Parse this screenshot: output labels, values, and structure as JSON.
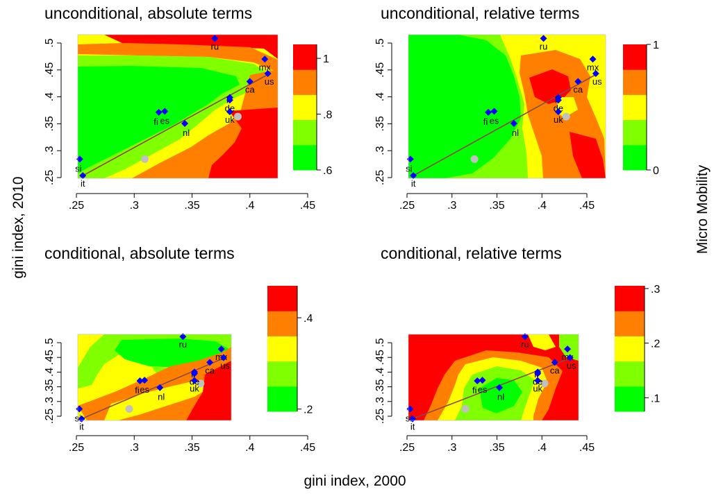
{
  "figure": {
    "xlabel": "gini index, 2000",
    "ylabel": "gini index, 2010",
    "colorbar_label": "Micro Mobility"
  },
  "colors": {
    "red": "#ff0000",
    "orange": "#ff7f00",
    "yellow": "#ffff00",
    "light_green": "#7fff00",
    "green": "#00ff00",
    "marker_country": "#0000ff",
    "marker_grey": "#c0c0c0",
    "fit_line": "#8b4a4a"
  },
  "chart_data": [
    {
      "type": "heatmap",
      "title": "unconditional, absolute terms",
      "xlim": [
        0.25,
        0.45
      ],
      "ylim": [
        0.25,
        0.52
      ],
      "x_ticks": [
        ".25",
        ".3",
        ".35",
        ".4",
        ".45"
      ],
      "y_ticks": [
        ".25",
        ".3",
        ".35",
        ".4",
        ".45",
        ".5"
      ],
      "colorbar": {
        "range": [
          0.6,
          1.05
        ],
        "ticks": [
          ".6",
          ".8",
          "1"
        ],
        "bands": [
          "green",
          "light_green",
          "yellow",
          "orange",
          "red"
        ]
      },
      "fit_line": [
        [
          0.255,
          0.255
        ],
        [
          0.44,
          0.445
        ]
      ],
      "countries": [
        {
          "code": "ru",
          "x": 0.387,
          "y": 0.513
        },
        {
          "code": "mx",
          "x": 0.437,
          "y": 0.474
        },
        {
          "code": "us",
          "x": 0.44,
          "y": 0.447
        },
        {
          "code": "ca",
          "x": 0.422,
          "y": 0.432
        },
        {
          "code": "il",
          "x": 0.402,
          "y": 0.402
        },
        {
          "code": "de",
          "x": 0.402,
          "y": 0.397
        },
        {
          "code": "uk",
          "x": 0.402,
          "y": 0.375
        },
        {
          "code": "fi",
          "x": 0.331,
          "y": 0.374
        },
        {
          "code": "es",
          "x": 0.337,
          "y": 0.376
        },
        {
          "code": "nl",
          "x": 0.357,
          "y": 0.353
        },
        {
          "code": "si",
          "x": 0.252,
          "y": 0.286
        },
        {
          "code": "it",
          "x": 0.255,
          "y": 0.255
        }
      ],
      "grey_points": [
        [
          0.317,
          0.286
        ],
        [
          0.41,
          0.366
        ]
      ]
    },
    {
      "type": "heatmap",
      "title": "unconditional, relative terms",
      "xlim": [
        0.25,
        0.45
      ],
      "ylim": [
        0.25,
        0.52
      ],
      "x_ticks": [
        ".25",
        ".3",
        ".35",
        ".4",
        ".45"
      ],
      "y_ticks": [
        ".25",
        ".3",
        ".35",
        ".4",
        ".45",
        ".5"
      ],
      "colorbar": {
        "range": [
          0,
          1
        ],
        "ticks": [
          "0",
          "1"
        ],
        "bands": [
          "green",
          "light_green",
          "yellow",
          "orange",
          "red"
        ]
      },
      "fit_line": [
        [
          0.255,
          0.255
        ],
        [
          0.44,
          0.445
        ]
      ],
      "countries": [
        {
          "code": "ru",
          "x": 0.387,
          "y": 0.513
        },
        {
          "code": "mx",
          "x": 0.437,
          "y": 0.474
        },
        {
          "code": "us",
          "x": 0.44,
          "y": 0.447
        },
        {
          "code": "ca",
          "x": 0.422,
          "y": 0.432
        },
        {
          "code": "il",
          "x": 0.402,
          "y": 0.402
        },
        {
          "code": "de",
          "x": 0.402,
          "y": 0.397
        },
        {
          "code": "uk",
          "x": 0.402,
          "y": 0.375
        },
        {
          "code": "fi",
          "x": 0.331,
          "y": 0.374
        },
        {
          "code": "es",
          "x": 0.337,
          "y": 0.376
        },
        {
          "code": "nl",
          "x": 0.357,
          "y": 0.353
        },
        {
          "code": "si",
          "x": 0.252,
          "y": 0.286
        },
        {
          "code": "it",
          "x": 0.255,
          "y": 0.255
        }
      ],
      "grey_points": [
        [
          0.317,
          0.286
        ],
        [
          0.41,
          0.366
        ]
      ]
    },
    {
      "type": "heatmap",
      "title": "conditional, absolute terms",
      "xlim": [
        0.25,
        0.45
      ],
      "ylim": [
        0.25,
        0.52
      ],
      "x_ticks": [
        ".25",
        ".3",
        ".35",
        ".4",
        ".45"
      ],
      "y_ticks": [
        ".25",
        ".3",
        ".35",
        ".4",
        ".45",
        ".5"
      ],
      "colorbar": {
        "range": [
          0.195,
          0.47
        ],
        "ticks": [
          ".2",
          ".4"
        ],
        "bands": [
          "green",
          "light_green",
          "yellow",
          "orange",
          "red"
        ]
      },
      "fit_line": [
        [
          0.255,
          0.255
        ],
        [
          0.44,
          0.445
        ]
      ],
      "countries": [
        {
          "code": "ru",
          "x": 0.387,
          "y": 0.513
        },
        {
          "code": "mx",
          "x": 0.437,
          "y": 0.474
        },
        {
          "code": "us",
          "x": 0.44,
          "y": 0.447
        },
        {
          "code": "ca",
          "x": 0.422,
          "y": 0.432
        },
        {
          "code": "il",
          "x": 0.402,
          "y": 0.402
        },
        {
          "code": "de",
          "x": 0.402,
          "y": 0.397
        },
        {
          "code": "uk",
          "x": 0.402,
          "y": 0.375
        },
        {
          "code": "fi",
          "x": 0.331,
          "y": 0.374
        },
        {
          "code": "es",
          "x": 0.337,
          "y": 0.376
        },
        {
          "code": "nl",
          "x": 0.357,
          "y": 0.353
        },
        {
          "code": "si",
          "x": 0.252,
          "y": 0.286
        },
        {
          "code": "it",
          "x": 0.255,
          "y": 0.255
        }
      ],
      "grey_points": [
        [
          0.317,
          0.286
        ],
        [
          0.41,
          0.366
        ]
      ]
    },
    {
      "type": "heatmap",
      "title": "conditional, relative terms",
      "xlim": [
        0.25,
        0.45
      ],
      "ylim": [
        0.25,
        0.52
      ],
      "x_ticks": [
        ".25",
        ".3",
        ".35",
        ".4",
        ".45"
      ],
      "y_ticks": [
        ".25",
        ".3",
        ".35",
        ".4",
        ".45",
        ".5"
      ],
      "colorbar": {
        "range": [
          0.075,
          0.305
        ],
        "ticks": [
          ".1",
          ".2",
          ".3"
        ],
        "bands": [
          "green",
          "light_green",
          "yellow",
          "orange",
          "red"
        ]
      },
      "fit_line": [
        [
          0.255,
          0.255
        ],
        [
          0.44,
          0.445
        ]
      ],
      "countries": [
        {
          "code": "ru",
          "x": 0.387,
          "y": 0.513
        },
        {
          "code": "mx",
          "x": 0.437,
          "y": 0.474
        },
        {
          "code": "us",
          "x": 0.44,
          "y": 0.447
        },
        {
          "code": "ca",
          "x": 0.422,
          "y": 0.432
        },
        {
          "code": "il",
          "x": 0.402,
          "y": 0.402
        },
        {
          "code": "de",
          "x": 0.402,
          "y": 0.397
        },
        {
          "code": "uk",
          "x": 0.402,
          "y": 0.375
        },
        {
          "code": "fi",
          "x": 0.331,
          "y": 0.374
        },
        {
          "code": "es",
          "x": 0.337,
          "y": 0.376
        },
        {
          "code": "nl",
          "x": 0.357,
          "y": 0.353
        },
        {
          "code": "si",
          "x": 0.252,
          "y": 0.286
        },
        {
          "code": "it",
          "x": 0.255,
          "y": 0.255
        }
      ],
      "grey_points": [
        [
          0.317,
          0.286
        ],
        [
          0.41,
          0.366
        ]
      ]
    }
  ]
}
